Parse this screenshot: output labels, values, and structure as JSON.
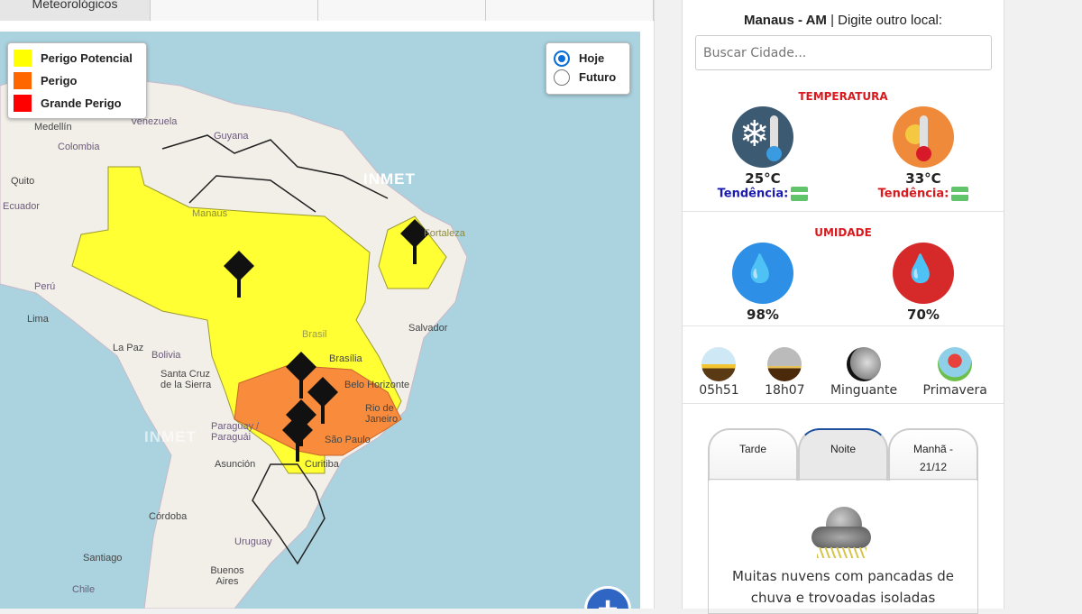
{
  "tabs": [
    {
      "label": "Meteorológicos"
    },
    {
      "label": ""
    },
    {
      "label": ""
    },
    {
      "label": ""
    }
  ],
  "map": {
    "legend": [
      {
        "label": "Perigo Potencial",
        "color": "#ffff00"
      },
      {
        "label": "Perigo",
        "color": "#ff6600"
      },
      {
        "label": "Grande Perigo",
        "color": "#ff0000"
      }
    ],
    "period": {
      "options": [
        "Hoje",
        "Futuro"
      ],
      "selected": "Hoje"
    },
    "watermark": "INMET",
    "labels": {
      "medellin": "Medellín",
      "venezuela": "Venezuela",
      "guyana": "Guyana",
      "colombia": "Colombia",
      "quito": "Quito",
      "ecuador": "Ecuador",
      "manaus": "Manaus",
      "fortaleza": "Fortaleza",
      "peru": "Perú",
      "lima": "Lima",
      "salvador": "Salvador",
      "brasil": "Brasil",
      "brasilia": "Brasília",
      "lapaz": "La Paz",
      "bolivia": "Bolivia",
      "santacruz": "Santa Cruz de la Sierra",
      "bh": "Belo Horizonte",
      "rio": "Rio de Janeiro",
      "paraguay": "Paraguay / Paraguái",
      "saopaulo": "São Paulo",
      "asuncion": "Asunción",
      "curitiba": "Curitiba",
      "cordoba": "Córdoba",
      "uruguay": "Uruguay",
      "santiago": "Santiago",
      "buenosaires": "Buenos Aires",
      "chile": "Chile"
    },
    "zoom_in": "+"
  },
  "panel": {
    "location": "Manaus - AM",
    "prompt": "| Digite outro local:",
    "search_placeholder": "Buscar Cidade...",
    "temperature": {
      "title": "TEMPERATURA",
      "min": "25°C",
      "max": "33°C",
      "trend_label": "Tendência:",
      "trend": "stable"
    },
    "humidity": {
      "title": "UMIDADE",
      "max": "98%",
      "min": "70%"
    },
    "astro": {
      "sunrise": "05h51",
      "sunset": "18h07",
      "moon": "Minguante",
      "season": "Primavera"
    },
    "forecast": {
      "tabs": [
        "Tarde",
        "Noite",
        "Manhã - 21/12"
      ],
      "active": "Noite",
      "description": "Muitas nuvens com pancadas de chuva e trovoadas isoladas"
    }
  }
}
